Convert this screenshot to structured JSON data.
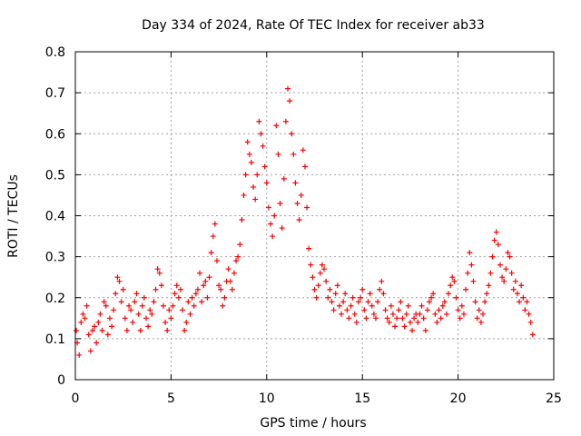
{
  "chart_data": {
    "type": "scatter",
    "title": "Day 334 of 2024, Rate Of TEC Index for receiver ab33",
    "xlabel": "GPS time / hours",
    "ylabel": "ROTI / TECUs",
    "xlim": [
      0,
      25
    ],
    "ylim": [
      0,
      0.8
    ],
    "xticks": [
      0,
      5,
      10,
      15,
      20,
      25
    ],
    "yticks": [
      0,
      0.1,
      0.2,
      0.3,
      0.4,
      0.5,
      0.6,
      0.7,
      0.8
    ],
    "xtick_labels": [
      "0",
      "5",
      "10",
      "15",
      "20",
      "25"
    ],
    "ytick_labels": [
      "0",
      "0.1",
      "0.2",
      "0.3",
      "0.4",
      "0.5",
      "0.6",
      "0.7",
      "0.8"
    ],
    "grid": true,
    "marker": "+",
    "marker_color": "#ff0000",
    "series": [
      {
        "points": [
          [
            0.05,
            0.12
          ],
          [
            0.1,
            0.09
          ],
          [
            0.2,
            0.06
          ],
          [
            0.3,
            0.14
          ],
          [
            0.4,
            0.16
          ],
          [
            0.5,
            0.15
          ],
          [
            0.6,
            0.18
          ],
          [
            0.7,
            0.11
          ],
          [
            0.8,
            0.07
          ],
          [
            0.9,
            0.12
          ],
          [
            1.0,
            0.13
          ],
          [
            1.1,
            0.09
          ],
          [
            1.2,
            0.14
          ],
          [
            1.3,
            0.16
          ],
          [
            1.4,
            0.12
          ],
          [
            1.5,
            0.19
          ],
          [
            1.6,
            0.18
          ],
          [
            1.7,
            0.11
          ],
          [
            1.8,
            0.15
          ],
          [
            1.9,
            0.13
          ],
          [
            2.0,
            0.17
          ],
          [
            2.1,
            0.21
          ],
          [
            2.2,
            0.25
          ],
          [
            2.3,
            0.24
          ],
          [
            2.4,
            0.19
          ],
          [
            2.5,
            0.22
          ],
          [
            2.6,
            0.15
          ],
          [
            2.7,
            0.12
          ],
          [
            2.8,
            0.18
          ],
          [
            2.9,
            0.17
          ],
          [
            3.0,
            0.14
          ],
          [
            3.1,
            0.19
          ],
          [
            3.2,
            0.21
          ],
          [
            3.3,
            0.16
          ],
          [
            3.4,
            0.12
          ],
          [
            3.5,
            0.18
          ],
          [
            3.6,
            0.2
          ],
          [
            3.7,
            0.15
          ],
          [
            3.8,
            0.13
          ],
          [
            3.9,
            0.17
          ],
          [
            4.0,
            0.16
          ],
          [
            4.1,
            0.19
          ],
          [
            4.2,
            0.22
          ],
          [
            4.3,
            0.27
          ],
          [
            4.4,
            0.26
          ],
          [
            4.5,
            0.23
          ],
          [
            4.6,
            0.18
          ],
          [
            4.7,
            0.14
          ],
          [
            4.8,
            0.12
          ],
          [
            4.9,
            0.17
          ],
          [
            5.0,
            0.15
          ],
          [
            5.1,
            0.18
          ],
          [
            5.2,
            0.21
          ],
          [
            5.3,
            0.23
          ],
          [
            5.4,
            0.2
          ],
          [
            5.5,
            0.22
          ],
          [
            5.6,
            0.17
          ],
          [
            5.7,
            0.12
          ],
          [
            5.8,
            0.14
          ],
          [
            5.9,
            0.19
          ],
          [
            6.0,
            0.16
          ],
          [
            6.1,
            0.2
          ],
          [
            6.2,
            0.18
          ],
          [
            6.3,
            0.21
          ],
          [
            6.4,
            0.22
          ],
          [
            6.5,
            0.26
          ],
          [
            6.6,
            0.19
          ],
          [
            6.7,
            0.23
          ],
          [
            6.8,
            0.24
          ],
          [
            6.9,
            0.2
          ],
          [
            7.0,
            0.25
          ],
          [
            7.1,
            0.31
          ],
          [
            7.2,
            0.35
          ],
          [
            7.3,
            0.38
          ],
          [
            7.4,
            0.29
          ],
          [
            7.5,
            0.23
          ],
          [
            7.6,
            0.22
          ],
          [
            7.7,
            0.18
          ],
          [
            7.8,
            0.2
          ],
          [
            7.9,
            0.24
          ],
          [
            8.0,
            0.27
          ],
          [
            8.1,
            0.24
          ],
          [
            8.2,
            0.22
          ],
          [
            8.3,
            0.26
          ],
          [
            8.4,
            0.29
          ],
          [
            8.5,
            0.3
          ],
          [
            8.6,
            0.33
          ],
          [
            8.7,
            0.39
          ],
          [
            8.8,
            0.45
          ],
          [
            8.9,
            0.5
          ],
          [
            9.0,
            0.58
          ],
          [
            9.1,
            0.55
          ],
          [
            9.2,
            0.53
          ],
          [
            9.3,
            0.47
          ],
          [
            9.4,
            0.44
          ],
          [
            9.5,
            0.5
          ],
          [
            9.6,
            0.63
          ],
          [
            9.7,
            0.6
          ],
          [
            9.8,
            0.57
          ],
          [
            9.9,
            0.52
          ],
          [
            10.0,
            0.48
          ],
          [
            10.1,
            0.42
          ],
          [
            10.2,
            0.38
          ],
          [
            10.3,
            0.35
          ],
          [
            10.4,
            0.4
          ],
          [
            10.5,
            0.62
          ],
          [
            10.6,
            0.55
          ],
          [
            10.7,
            0.43
          ],
          [
            10.8,
            0.37
          ],
          [
            10.9,
            0.49
          ],
          [
            11.0,
            0.63
          ],
          [
            11.1,
            0.71
          ],
          [
            11.2,
            0.68
          ],
          [
            11.3,
            0.6
          ],
          [
            11.4,
            0.55
          ],
          [
            11.5,
            0.48
          ],
          [
            11.6,
            0.43
          ],
          [
            11.7,
            0.39
          ],
          [
            11.8,
            0.45
          ],
          [
            11.9,
            0.56
          ],
          [
            12.0,
            0.52
          ],
          [
            12.1,
            0.42
          ],
          [
            12.2,
            0.32
          ],
          [
            12.3,
            0.28
          ],
          [
            12.4,
            0.25
          ],
          [
            12.5,
            0.22
          ],
          [
            12.6,
            0.2
          ],
          [
            12.7,
            0.23
          ],
          [
            12.8,
            0.26
          ],
          [
            12.9,
            0.28
          ],
          [
            13.0,
            0.27
          ],
          [
            13.1,
            0.24
          ],
          [
            13.2,
            0.2
          ],
          [
            13.3,
            0.22
          ],
          [
            13.4,
            0.19
          ],
          [
            13.5,
            0.17
          ],
          [
            13.6,
            0.21
          ],
          [
            13.7,
            0.23
          ],
          [
            13.8,
            0.18
          ],
          [
            13.9,
            0.16
          ],
          [
            14.0,
            0.19
          ],
          [
            14.1,
            0.21
          ],
          [
            14.2,
            0.17
          ],
          [
            14.3,
            0.15
          ],
          [
            14.4,
            0.18
          ],
          [
            14.5,
            0.2
          ],
          [
            14.6,
            0.16
          ],
          [
            14.7,
            0.14
          ],
          [
            14.8,
            0.19
          ],
          [
            14.9,
            0.2
          ],
          [
            15.0,
            0.22
          ],
          [
            15.1,
            0.17
          ],
          [
            15.2,
            0.15
          ],
          [
            15.3,
            0.19
          ],
          [
            15.4,
            0.21
          ],
          [
            15.5,
            0.18
          ],
          [
            15.6,
            0.16
          ],
          [
            15.7,
            0.15
          ],
          [
            15.8,
            0.19
          ],
          [
            15.9,
            0.22
          ],
          [
            16.0,
            0.24
          ],
          [
            16.1,
            0.21
          ],
          [
            16.2,
            0.17
          ],
          [
            16.3,
            0.15
          ],
          [
            16.4,
            0.14
          ],
          [
            16.5,
            0.18
          ],
          [
            16.6,
            0.16
          ],
          [
            16.7,
            0.13
          ],
          [
            16.8,
            0.15
          ],
          [
            16.9,
            0.17
          ],
          [
            17.0,
            0.19
          ],
          [
            17.1,
            0.15
          ],
          [
            17.2,
            0.13
          ],
          [
            17.3,
            0.16
          ],
          [
            17.4,
            0.18
          ],
          [
            17.5,
            0.14
          ],
          [
            17.6,
            0.12
          ],
          [
            17.7,
            0.15
          ],
          [
            17.8,
            0.16
          ],
          [
            17.9,
            0.14
          ],
          [
            18.0,
            0.16
          ],
          [
            18.1,
            0.18
          ],
          [
            18.2,
            0.15
          ],
          [
            18.3,
            0.12
          ],
          [
            18.4,
            0.17
          ],
          [
            18.5,
            0.19
          ],
          [
            18.6,
            0.2
          ],
          [
            18.7,
            0.21
          ],
          [
            18.8,
            0.16
          ],
          [
            18.9,
            0.14
          ],
          [
            19.0,
            0.17
          ],
          [
            19.1,
            0.15
          ],
          [
            19.2,
            0.18
          ],
          [
            19.3,
            0.19
          ],
          [
            19.4,
            0.16
          ],
          [
            19.5,
            0.21
          ],
          [
            19.6,
            0.23
          ],
          [
            19.7,
            0.25
          ],
          [
            19.8,
            0.24
          ],
          [
            19.9,
            0.2
          ],
          [
            20.0,
            0.17
          ],
          [
            20.1,
            0.15
          ],
          [
            20.2,
            0.18
          ],
          [
            20.3,
            0.16
          ],
          [
            20.4,
            0.22
          ],
          [
            20.5,
            0.26
          ],
          [
            20.6,
            0.31
          ],
          [
            20.7,
            0.28
          ],
          [
            20.8,
            0.24
          ],
          [
            20.9,
            0.19
          ],
          [
            21.0,
            0.15
          ],
          [
            21.1,
            0.17
          ],
          [
            21.2,
            0.14
          ],
          [
            21.3,
            0.16
          ],
          [
            21.4,
            0.19
          ],
          [
            21.5,
            0.21
          ],
          [
            21.6,
            0.23
          ],
          [
            21.7,
            0.26
          ],
          [
            21.8,
            0.3
          ],
          [
            21.9,
            0.34
          ],
          [
            22.0,
            0.36
          ],
          [
            22.1,
            0.33
          ],
          [
            22.2,
            0.28
          ],
          [
            22.3,
            0.25
          ],
          [
            22.4,
            0.24
          ],
          [
            22.5,
            0.27
          ],
          [
            22.6,
            0.31
          ],
          [
            22.7,
            0.3
          ],
          [
            22.8,
            0.26
          ],
          [
            22.9,
            0.22
          ],
          [
            23.0,
            0.24
          ],
          [
            23.1,
            0.21
          ],
          [
            23.2,
            0.19
          ],
          [
            23.3,
            0.23
          ],
          [
            23.4,
            0.2
          ],
          [
            23.5,
            0.17
          ],
          [
            23.6,
            0.19
          ],
          [
            23.7,
            0.16
          ],
          [
            23.8,
            0.14
          ],
          [
            23.9,
            0.11
          ]
        ]
      }
    ]
  }
}
